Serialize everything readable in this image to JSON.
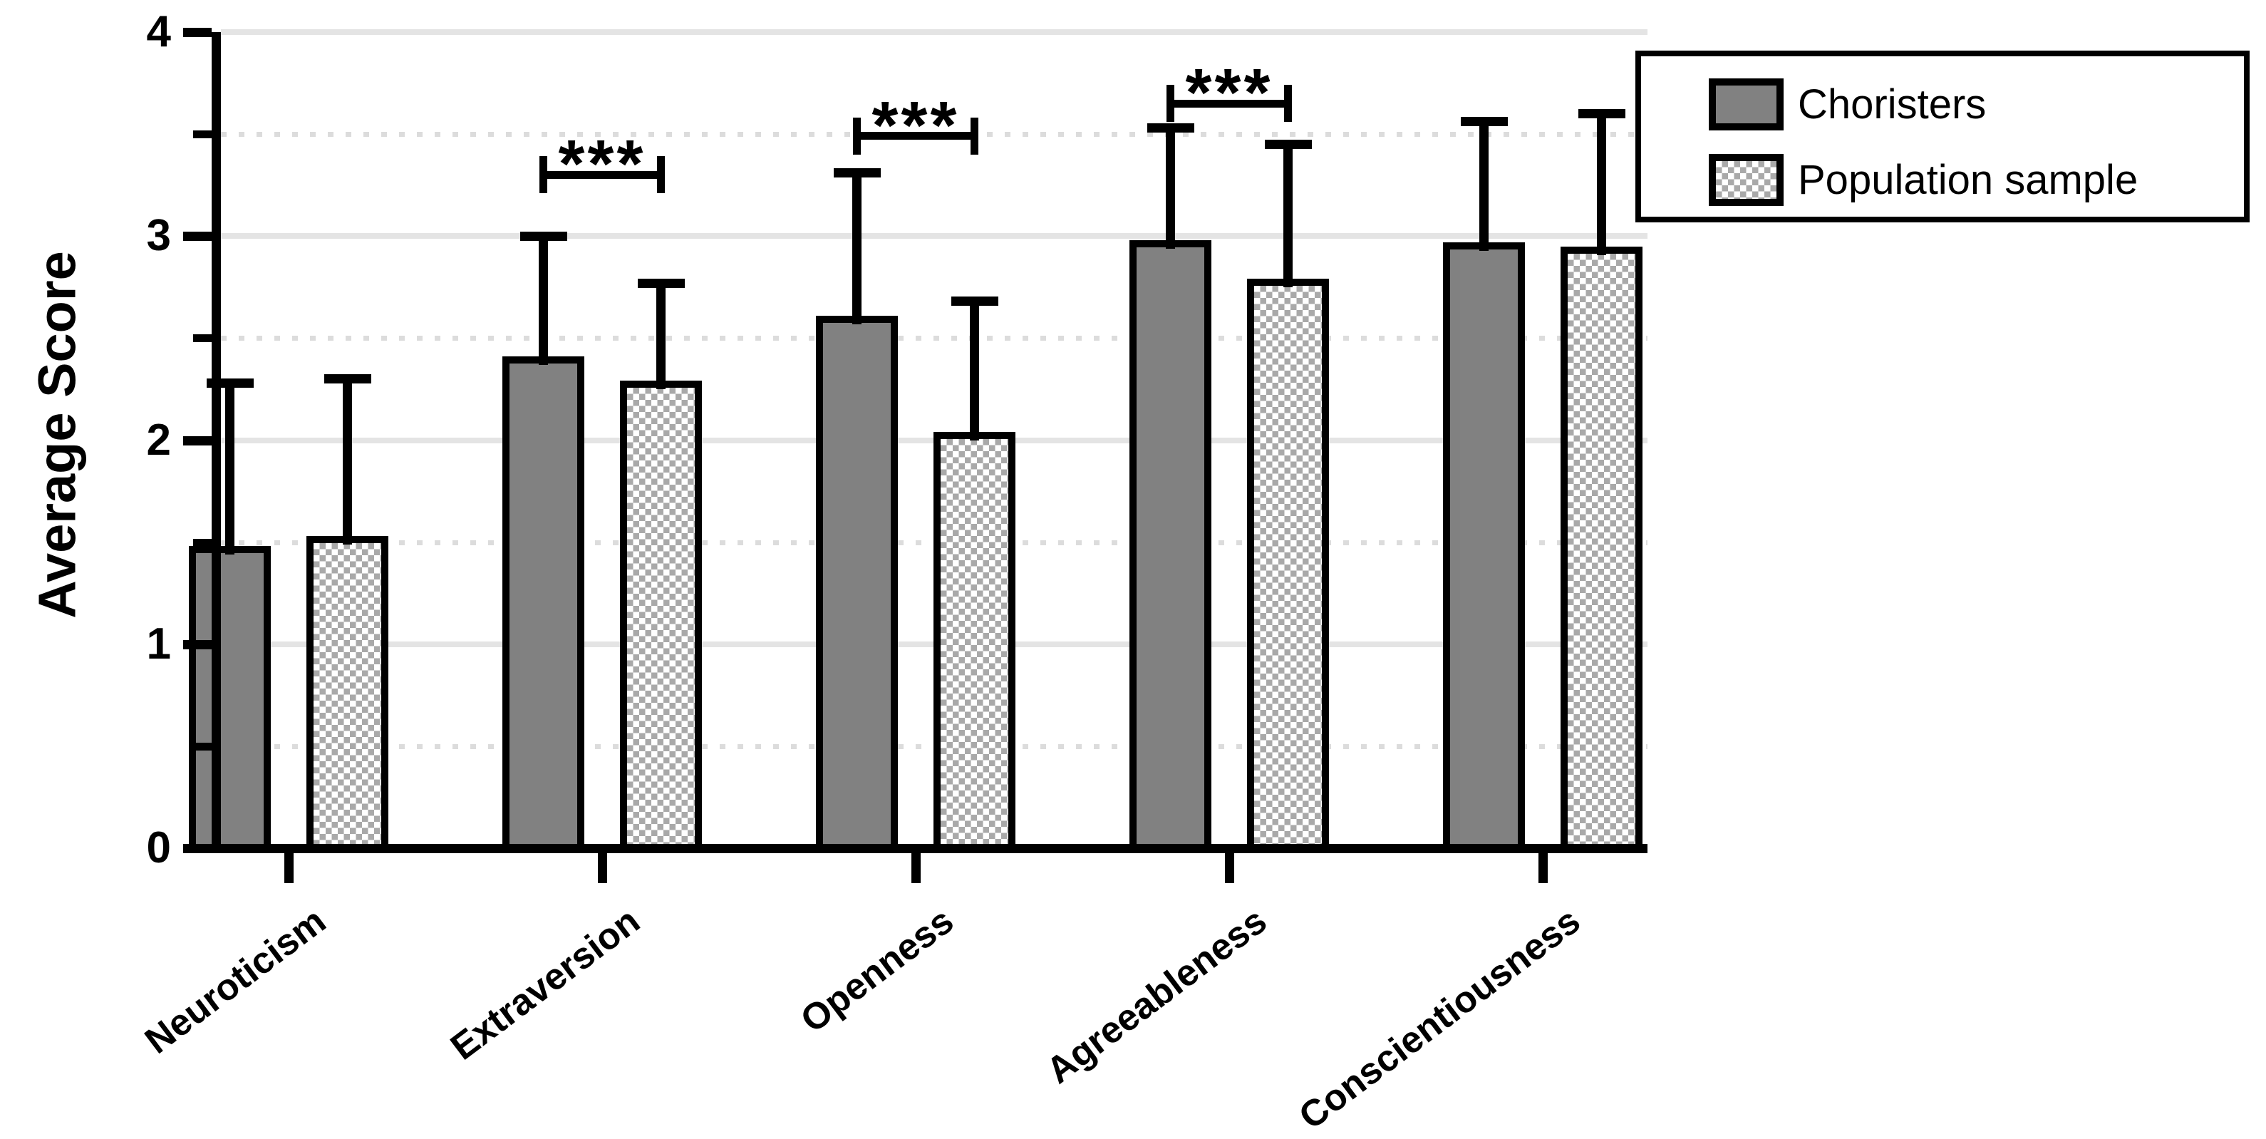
{
  "chart_data": {
    "type": "bar",
    "title": "",
    "xlabel": "",
    "ylabel": "Average Score",
    "categories": [
      "Neuroticism",
      "Extraversion",
      "Openness",
      "Agreeableness",
      "Conscientiousness"
    ],
    "series": [
      {
        "name": "Choristers",
        "style": "solid",
        "values": [
          1.48,
          2.41,
          2.61,
          2.98,
          2.97
        ],
        "error_top": [
          2.28,
          3.0,
          3.31,
          3.53,
          3.56
        ]
      },
      {
        "name": "Population sample",
        "style": "checkered",
        "values": [
          1.53,
          2.29,
          2.04,
          2.79,
          2.95
        ],
        "error_top": [
          2.3,
          2.77,
          2.68,
          3.45,
          3.6
        ]
      }
    ],
    "ylim": [
      0,
      4
    ],
    "yticks": [
      0,
      1,
      2,
      3,
      4
    ],
    "yticks_minor": [
      0.5,
      1.5,
      2.5,
      3.5
    ],
    "grid": "horizontal",
    "legend_position": "top-right",
    "significance": [
      {
        "category": "Extraversion",
        "label": "***",
        "bracket_y": 3.3
      },
      {
        "category": "Openness",
        "label": "***",
        "bracket_y": 3.49
      },
      {
        "category": "Agreeableness",
        "label": "***",
        "bracket_y": 3.65
      }
    ]
  },
  "legend": {
    "items": [
      {
        "label": "Choristers",
        "swatch": "solid"
      },
      {
        "label": "Population sample",
        "swatch": "checkered"
      }
    ]
  },
  "colors": {
    "solid_bar": "#818181",
    "checker_gray": "#a9a9a9",
    "grid_solid": "#e4e4e4",
    "grid_dotted": "#dcdcdc",
    "axis": "#000000",
    "background": "#ffffff"
  }
}
